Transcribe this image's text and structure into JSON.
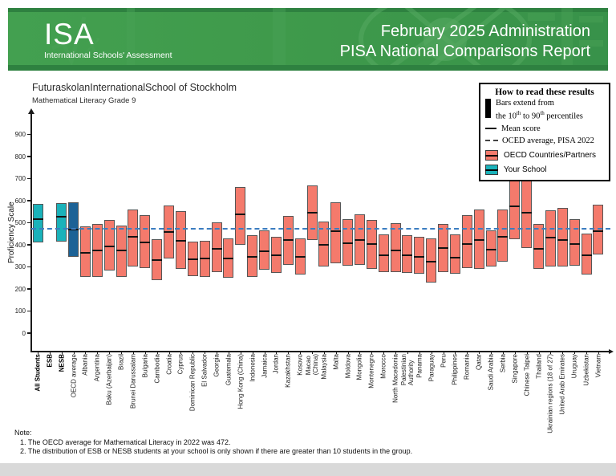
{
  "header": {
    "logo_title": "ISA",
    "logo_subtitle": "International Schools' Assessment",
    "title_line1": "February 2025 Administration",
    "title_line2": "PISA National Comparisons Report"
  },
  "chart": {
    "title": "FuturaskolanInternationalSchool of Stockholm",
    "subtitle": "Mathematical Literacy Grade 9",
    "y_axis_label": "Proficiency Scale"
  },
  "legend": {
    "title": "How to read these results",
    "bars_line1": "Bars extend from",
    "p_before": "the 10",
    "p_sup1": "th",
    "p_mid": " to 90",
    "p_sup2": "th",
    "p_after": " percentiles",
    "mean_label": "Mean score",
    "ref_label": "OCED average, PISA 2022",
    "countries_label": "OECD Countries/Partners",
    "school_label": "Your School"
  },
  "notes": {
    "label": "Note:",
    "item1": "1. The OECD average for Mathematical Literacy in 2022 was 472.",
    "item2": "2. The distribution of ESB or NESB students at your school is only shown if there are greater than 10 students in the group."
  },
  "colors": {
    "school": "#1ab2ba",
    "oecd_avg": "#1c6296",
    "country": "#f47a6c",
    "bar_border": "#565656",
    "mean_line": "#141414",
    "reference_line": "#3b7dc0",
    "header_green": "#3f9a4b",
    "header_green_dark": "#2e8140",
    "footer_gray": "#d9d9d9"
  },
  "chart_data": {
    "type": "bar",
    "style": "floating-bars-10th-to-90th-percentile-with-mean",
    "title": "FuturaskolanInternationalSchool of Stockholm",
    "subtitle": "Mathematical Literacy Grade 9",
    "ylabel": "Proficiency Scale",
    "ylim": [
      0,
      980
    ],
    "y_ticks": [
      0,
      100,
      200,
      300,
      400,
      500,
      600,
      700,
      800,
      900
    ],
    "grid": false,
    "legend_position": "top-right",
    "reference_line": {
      "value": 472,
      "label": "OECD average, PISA 2022"
    },
    "series": [
      {
        "label": "All Students",
        "bold": true,
        "group": "school",
        "p10": 410,
        "mean": 520,
        "p90": 585
      },
      {
        "label": "ESB",
        "bold": true,
        "group": "none"
      },
      {
        "label": "NESB",
        "bold": true,
        "group": "school",
        "p10": 413,
        "mean": 530,
        "p90": 589
      },
      {
        "label": "OECD average",
        "group": "oecd_avg",
        "p10": 346,
        "mean": 472,
        "p90": 591
      },
      {
        "label": "Albania",
        "group": "country",
        "p10": 253,
        "mean": 368,
        "p90": 483
      },
      {
        "label": "Argentina",
        "group": "country",
        "p10": 255,
        "mean": 380,
        "p90": 495
      },
      {
        "label": "Baku (Azerbaijan)",
        "group": "country",
        "p10": 285,
        "mean": 397,
        "p90": 512
      },
      {
        "label": "Brazil",
        "group": "country",
        "p10": 255,
        "mean": 378,
        "p90": 488
      },
      {
        "label": "Brunei Darussalam",
        "group": "country",
        "p10": 302,
        "mean": 440,
        "p90": 560
      },
      {
        "label": "Bulgaria",
        "group": "country",
        "p10": 295,
        "mean": 415,
        "p90": 535
      },
      {
        "label": "Cambodia",
        "group": "country",
        "p10": 240,
        "mean": 335,
        "p90": 425
      },
      {
        "label": "Croatia",
        "group": "country",
        "p10": 340,
        "mean": 462,
        "p90": 580
      },
      {
        "label": "Cyprus",
        "group": "country",
        "p10": 290,
        "mean": 420,
        "p90": 553
      },
      {
        "label": "Dominican Republic",
        "group": "country",
        "p10": 258,
        "mean": 337,
        "p90": 413
      },
      {
        "label": "El Salvador",
        "group": "country",
        "p10": 255,
        "mean": 340,
        "p90": 418
      },
      {
        "label": "Georgia",
        "group": "country",
        "p10": 277,
        "mean": 387,
        "p90": 501
      },
      {
        "label": "Guatemala",
        "group": "country",
        "p10": 250,
        "mean": 342,
        "p90": 428
      },
      {
        "label": "Hong Kong (China)",
        "group": "country",
        "p10": 400,
        "mean": 542,
        "p90": 663
      },
      {
        "label": "Indonesia",
        "group": "country",
        "p10": 253,
        "mean": 349,
        "p90": 443
      },
      {
        "label": "Jamaica",
        "group": "country",
        "p10": 288,
        "mean": 376,
        "p90": 464
      },
      {
        "label": "Jordan",
        "group": "country",
        "p10": 273,
        "mean": 357,
        "p90": 437
      },
      {
        "label": "Kazakhstan",
        "group": "country",
        "p10": 310,
        "mean": 424,
        "p90": 530
      },
      {
        "label": "Kosovo",
        "group": "country",
        "p10": 265,
        "mean": 349,
        "p90": 428
      },
      {
        "label": "Macao (China)",
        "lines": [
          "Macao",
          "(China)"
        ],
        "group": "country",
        "p10": 422,
        "mean": 549,
        "p90": 668
      },
      {
        "label": "Malaysia",
        "group": "country",
        "p10": 303,
        "mean": 404,
        "p90": 507
      },
      {
        "label": "Malta",
        "group": "country",
        "p10": 318,
        "mean": 464,
        "p90": 593
      },
      {
        "label": "Moldova",
        "group": "country",
        "p10": 306,
        "mean": 412,
        "p90": 518
      },
      {
        "label": "Mongolia",
        "group": "country",
        "p10": 310,
        "mean": 424,
        "p90": 540
      },
      {
        "label": "Montenegro",
        "group": "country",
        "p10": 291,
        "mean": 407,
        "p90": 513
      },
      {
        "label": "Morocco",
        "group": "country",
        "p10": 278,
        "mean": 356,
        "p90": 448
      },
      {
        "label": "North Macedonia",
        "group": "country",
        "p10": 278,
        "mean": 380,
        "p90": 500
      },
      {
        "label": "Palestinian Authority",
        "lines": [
          "Palestinian",
          "Authority"
        ],
        "group": "country",
        "p10": 272,
        "mean": 358,
        "p90": 445
      },
      {
        "label": "Panama",
        "group": "country",
        "p10": 268,
        "mean": 348,
        "p90": 436
      },
      {
        "label": "Paraguay",
        "group": "country",
        "p10": 228,
        "mean": 328,
        "p90": 430
      },
      {
        "label": "Peru",
        "group": "country",
        "p10": 278,
        "mean": 388,
        "p90": 496
      },
      {
        "label": "Philippines",
        "group": "country",
        "p10": 268,
        "mean": 346,
        "p90": 448
      },
      {
        "label": "Romania",
        "group": "country",
        "p10": 294,
        "mean": 408,
        "p90": 536
      },
      {
        "label": "Qatar",
        "group": "country",
        "p10": 290,
        "mean": 424,
        "p90": 560
      },
      {
        "label": "Saudi Arabia",
        "group": "country",
        "p10": 300,
        "mean": 382,
        "p90": 467
      },
      {
        "label": "Serbia",
        "group": "country",
        "p10": 324,
        "mean": 439,
        "p90": 560
      },
      {
        "label": "Singapore",
        "group": "country",
        "p10": 427,
        "mean": 578,
        "p90": 706
      },
      {
        "label": "Chinese Taipei",
        "group": "country",
        "p10": 385,
        "mean": 548,
        "p90": 690
      },
      {
        "label": "Thailand",
        "group": "country",
        "p10": 290,
        "mean": 387,
        "p90": 494
      },
      {
        "label": "Ukrainian regions (18 of 27)",
        "group": "country",
        "p10": 302,
        "mean": 436,
        "p90": 557
      },
      {
        "label": "United Arab Emirates",
        "group": "country",
        "p10": 300,
        "mean": 424,
        "p90": 569
      },
      {
        "label": "Uruguay",
        "group": "country",
        "p10": 306,
        "mean": 407,
        "p90": 518
      },
      {
        "label": "Uzbekistan",
        "group": "country",
        "p10": 266,
        "mean": 358,
        "p90": 452
      },
      {
        "label": "Vietnam",
        "group": "country",
        "p10": 355,
        "mean": 467,
        "p90": 581
      }
    ]
  }
}
